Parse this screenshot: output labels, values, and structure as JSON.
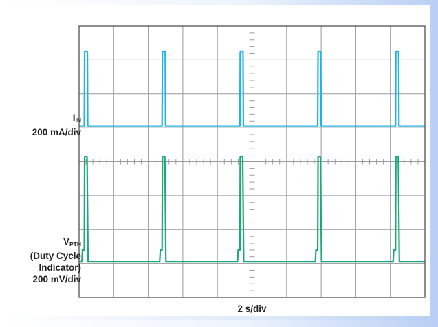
{
  "chart_data": {
    "type": "line",
    "title": "",
    "xlabel": "2 s/div",
    "grid": true,
    "divisions": {
      "x": 10,
      "y": 8
    },
    "x_unit": "div",
    "series": [
      {
        "channel_label_main": "I",
        "channel_label_sub": "IN",
        "scale": "200 mA/div",
        "color": "#1fb3e6",
        "baseline_div": 5.05,
        "pulse_height_div": 2.2,
        "pulse_times_div": [
          0.2,
          2.45,
          4.7,
          6.95,
          9.2
        ]
      },
      {
        "channel_label_main": "V",
        "channel_label_sub": "PTH",
        "label_line2": "(Duty Cycle",
        "label_line3": "Indicator)",
        "scale": "200 mV/div",
        "color": "#1aaa78",
        "baseline_div": 1.05,
        "step_height_div": 0.35,
        "pulse_height_div": 3.1,
        "pulse_times_div": [
          0.2,
          2.45,
          4.7,
          6.95,
          9.2
        ]
      }
    ]
  },
  "colors": {
    "grid": "#9a9a9a",
    "frame": "#444444",
    "background": "#ffffff"
  }
}
